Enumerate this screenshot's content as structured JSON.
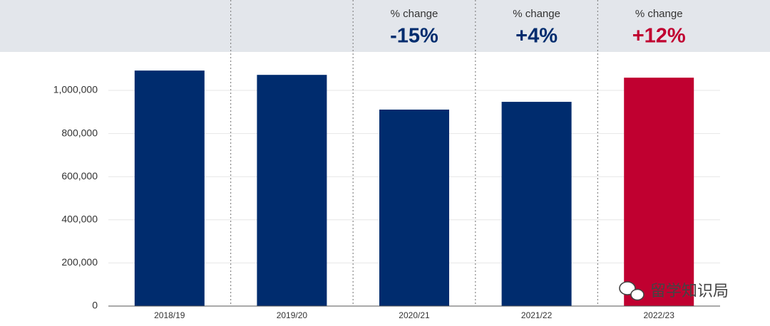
{
  "chart_data": {
    "type": "bar",
    "categories": [
      "2018/19",
      "2019/20",
      "2020/21",
      "2021/22",
      "2022/23"
    ],
    "values": [
      1092000,
      1072000,
      911000,
      947000,
      1059000
    ],
    "colors": [
      "#002c6e",
      "#002c6e",
      "#002c6e",
      "#002c6e",
      "#c00030"
    ],
    "annotations": [
      null,
      null,
      {
        "caption": "% change",
        "text": "-15%"
      },
      {
        "caption": "% change",
        "text": "+4%"
      },
      {
        "caption": "% change",
        "text": "+12%"
      }
    ],
    "ylim": [
      0,
      1200000
    ],
    "yticks": [
      0,
      {
        "value": 200000,
        "label": "200,000"
      },
      {
        "value": 400000,
        "label": "400,000"
      },
      {
        "value": 600000,
        "label": "600,000"
      },
      {
        "value": 800000,
        "label": "800,000"
      },
      {
        "value": 1000000,
        "label": "1,000,000"
      }
    ],
    "grid": true,
    "watermark": "留学知识局"
  }
}
